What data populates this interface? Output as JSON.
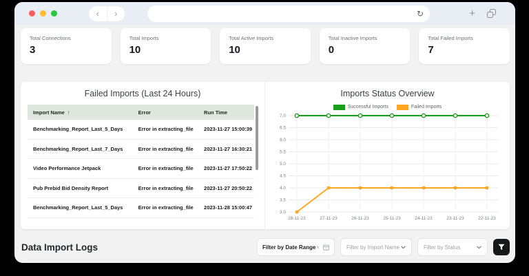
{
  "browser": {
    "back_icon": "‹",
    "forward_icon": "›",
    "refresh_icon": "↻",
    "new_tab_icon": "+",
    "url_value": ""
  },
  "colors": {
    "traffic_red": "#ff5f57",
    "traffic_yellow": "#febc2e",
    "traffic_green": "#28c840",
    "table_header_bg": "#dfe7df",
    "success_green": "#18a018",
    "failed_orange": "#ffa620"
  },
  "stats": [
    {
      "label": "Total Connections",
      "value": "3"
    },
    {
      "label": "Total Imports",
      "value": "10"
    },
    {
      "label": "Total Active Imports",
      "value": "10"
    },
    {
      "label": "Total Inactive Imports",
      "value": "0"
    },
    {
      "label": "Total Failed Imports",
      "value": "7"
    }
  ],
  "failed_imports": {
    "title": "Failed Imports (Last 24 Hours)",
    "columns": [
      "Import Name",
      "Error",
      "Run Time"
    ],
    "sort_arrow": "↑",
    "rows": [
      [
        "Benchmarking_Report_Last_5_Days",
        "Error in extracting_file",
        "2023-11-27 15:00:39"
      ],
      [
        "Benchmarking_Report_Last_7_Days",
        "Error in extracting_file",
        "2023-11-27 16:30:21"
      ],
      [
        "Video Performance Jetpack",
        "Error in extracting_file",
        "2023-11-27 17:50:22"
      ],
      [
        "Pub Prebid Bid Density Report",
        "Error in extracting_file",
        "2023-11-27 20:50:22"
      ],
      [
        "Benchmarking_Report_Last_5_Days",
        "Error in extracting_file",
        "2023-11-28 15:00:47"
      ]
    ]
  },
  "chart_data": {
    "type": "line",
    "title": "Imports Status Overview",
    "x": [
      "28-11-23",
      "27-11-23",
      "26-11-23",
      "25-11-23",
      "24-11-23",
      "23-11-23",
      "22-11-23"
    ],
    "series": [
      {
        "name": "Successful Imports",
        "color": "#18a018",
        "marker": "circle",
        "values": [
          7,
          7,
          7,
          7,
          7,
          7,
          7
        ]
      },
      {
        "name": "Failed Imports",
        "color": "#ffa620",
        "marker": "square",
        "values": [
          3,
          4,
          4,
          4,
          4,
          4,
          4
        ]
      }
    ],
    "ylim": [
      3.0,
      7.0
    ],
    "ytick_step": 0.5,
    "grid": true,
    "legend_position": "top"
  },
  "footer": {
    "title": "Data Import Logs",
    "date_filter_placeholder": "Filter by Date Range",
    "date_filter_clear_icon": "×",
    "name_filter_placeholder": "Filter by Import Name",
    "status_filter_placeholder": "Filter by Status"
  }
}
